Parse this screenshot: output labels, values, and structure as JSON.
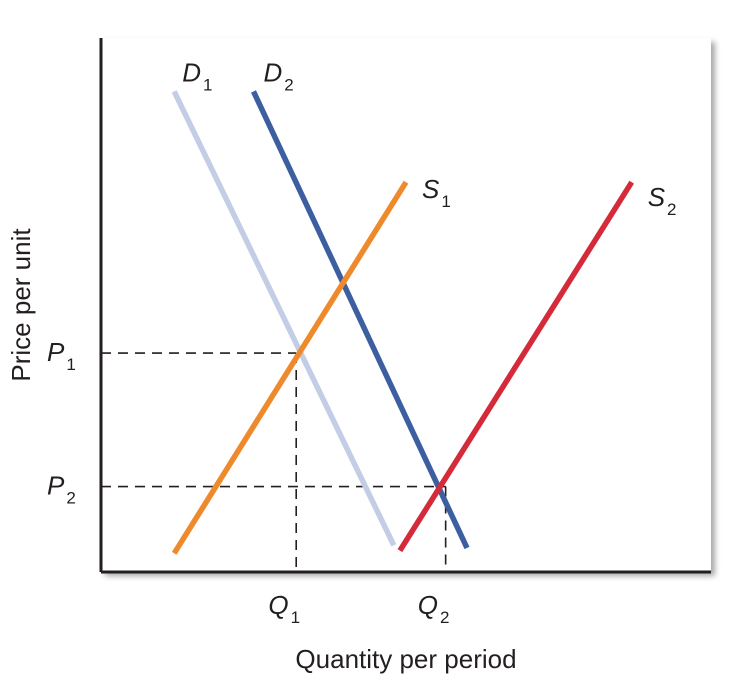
{
  "chart_data": {
    "type": "line",
    "xlabel": "Quantity per period",
    "ylabel": "Price per unit",
    "xlim": [
      0,
      10
    ],
    "ylim": [
      0,
      10
    ],
    "grid": false,
    "colors": {
      "D1": "#c3cde6",
      "D2": "#3d5fa0",
      "S1": "#ef8a2c",
      "S2": "#d42a3a",
      "axis": "#231f20",
      "guide": "#231f20"
    },
    "series": [
      {
        "key": "D1",
        "name": "D",
        "sub": "1",
        "points": [
          [
            1.2,
            9.0
          ],
          [
            4.8,
            0.5
          ]
        ]
      },
      {
        "key": "D2",
        "name": "D",
        "sub": "2",
        "points": [
          [
            2.5,
            9.0
          ],
          [
            6.0,
            0.45
          ]
        ]
      },
      {
        "key": "S1",
        "name": "S",
        "sub": "1",
        "points": [
          [
            1.2,
            0.35
          ],
          [
            5.0,
            7.3
          ]
        ]
      },
      {
        "key": "S2",
        "name": "S",
        "sub": "2",
        "points": [
          [
            4.9,
            0.4
          ],
          [
            8.7,
            7.3
          ]
        ]
      }
    ],
    "x_ticks": [
      {
        "key": "Q1",
        "name": "Q",
        "sub": "1",
        "value": 3.2
      },
      {
        "key": "Q2",
        "name": "Q",
        "sub": "2",
        "value": 5.65
      }
    ],
    "y_ticks": [
      {
        "key": "P1",
        "name": "P",
        "sub": "1",
        "value": 4.1
      },
      {
        "key": "P2",
        "name": "P",
        "sub": "2",
        "value": 1.6
      }
    ],
    "equilibria": [
      {
        "key": "E1",
        "x": 3.2,
        "y": 4.1
      },
      {
        "key": "E2",
        "x": 5.65,
        "y": 1.6
      }
    ]
  }
}
